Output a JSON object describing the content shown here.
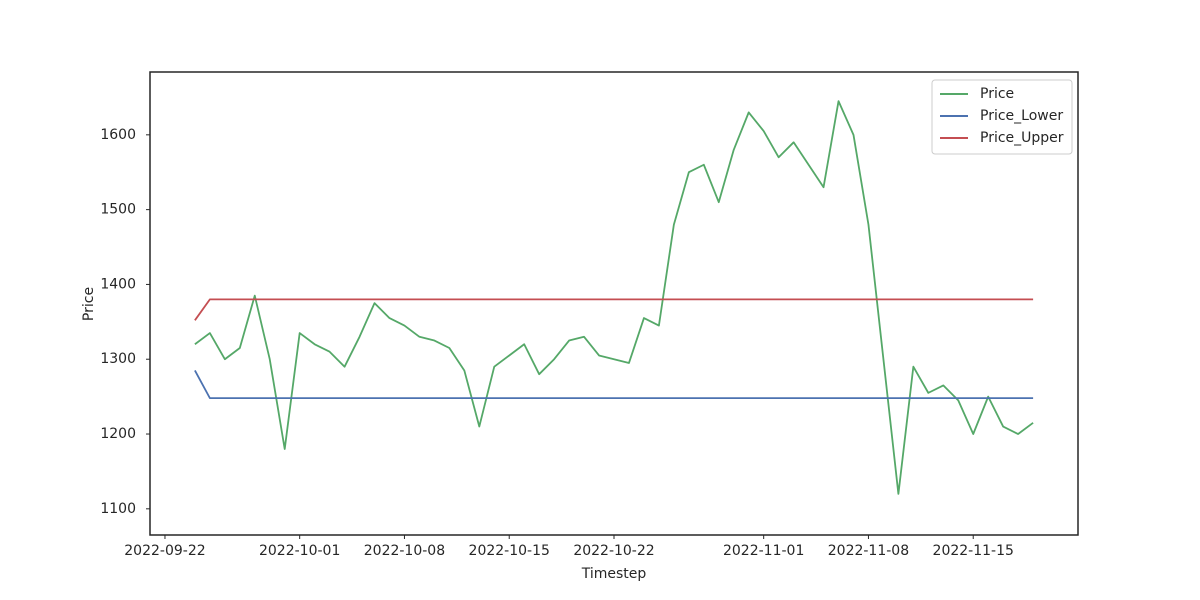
{
  "chart_data": {
    "type": "line",
    "xlabel": "Timestep",
    "ylabel": "Price",
    "x": [
      "2022-09-24",
      "2022-09-25",
      "2022-09-26",
      "2022-09-27",
      "2022-09-28",
      "2022-09-29",
      "2022-09-30",
      "2022-10-01",
      "2022-10-02",
      "2022-10-03",
      "2022-10-04",
      "2022-10-05",
      "2022-10-06",
      "2022-10-07",
      "2022-10-08",
      "2022-10-09",
      "2022-10-10",
      "2022-10-11",
      "2022-10-12",
      "2022-10-13",
      "2022-10-14",
      "2022-10-15",
      "2022-10-16",
      "2022-10-17",
      "2022-10-18",
      "2022-10-19",
      "2022-10-20",
      "2022-10-21",
      "2022-10-22",
      "2022-10-23",
      "2022-10-24",
      "2022-10-25",
      "2022-10-26",
      "2022-10-27",
      "2022-10-28",
      "2022-10-29",
      "2022-10-30",
      "2022-10-31",
      "2022-11-01",
      "2022-11-02",
      "2022-11-03",
      "2022-11-04",
      "2022-11-05",
      "2022-11-06",
      "2022-11-07",
      "2022-11-08",
      "2022-11-09",
      "2022-11-10",
      "2022-11-11",
      "2022-11-12",
      "2022-11-13",
      "2022-11-14",
      "2022-11-15",
      "2022-11-16",
      "2022-11-17",
      "2022-11-18",
      "2022-11-19"
    ],
    "series": [
      {
        "name": "Price",
        "color": "#55a868",
        "values": [
          1320,
          1335,
          1300,
          1315,
          1385,
          1300,
          1180,
          1335,
          1320,
          1310,
          1290,
          1330,
          1375,
          1355,
          1345,
          1330,
          1325,
          1315,
          1285,
          1210,
          1290,
          1305,
          1320,
          1280,
          1300,
          1325,
          1330,
          1305,
          1300,
          1295,
          1355,
          1345,
          1480,
          1550,
          1560,
          1510,
          1580,
          1630,
          1605,
          1570,
          1590,
          1560,
          1530,
          1645,
          1600,
          1480,
          1300,
          1120,
          1290,
          1255,
          1265,
          1245,
          1200,
          1250,
          1210,
          1200,
          1215
        ]
      },
      {
        "name": "Price_Lower",
        "color": "#4c72b0",
        "values": [
          1285,
          1248,
          1248,
          1248,
          1248,
          1248,
          1248,
          1248,
          1248,
          1248,
          1248,
          1248,
          1248,
          1248,
          1248,
          1248,
          1248,
          1248,
          1248,
          1248,
          1248,
          1248,
          1248,
          1248,
          1248,
          1248,
          1248,
          1248,
          1248,
          1248,
          1248,
          1248,
          1248,
          1248,
          1248,
          1248,
          1248,
          1248,
          1248,
          1248,
          1248,
          1248,
          1248,
          1248,
          1248,
          1248,
          1248,
          1248,
          1248,
          1248,
          1248,
          1248,
          1248,
          1248,
          1248,
          1248,
          1248
        ]
      },
      {
        "name": "Price_Upper",
        "color": "#c44e52",
        "values": [
          1352,
          1380,
          1380,
          1380,
          1380,
          1380,
          1380,
          1380,
          1380,
          1380,
          1380,
          1380,
          1380,
          1380,
          1380,
          1380,
          1380,
          1380,
          1380,
          1380,
          1380,
          1380,
          1380,
          1380,
          1380,
          1380,
          1380,
          1380,
          1380,
          1380,
          1380,
          1380,
          1380,
          1380,
          1380,
          1380,
          1380,
          1380,
          1380,
          1380,
          1380,
          1380,
          1380,
          1380,
          1380,
          1380,
          1380,
          1380,
          1380,
          1380,
          1380,
          1380,
          1380,
          1380,
          1380,
          1380,
          1380
        ]
      }
    ],
    "xlim": [
      "2022-09-21",
      "2022-11-22"
    ],
    "xticks": [
      "2022-09-22",
      "2022-10-01",
      "2022-10-08",
      "2022-10-15",
      "2022-10-22",
      "2022-11-01",
      "2022-11-08",
      "2022-11-15"
    ],
    "ylim": [
      1065,
      1684
    ],
    "yticks": [
      1100,
      1200,
      1300,
      1400,
      1500,
      1600
    ],
    "legend": "upper right",
    "grid": false
  }
}
